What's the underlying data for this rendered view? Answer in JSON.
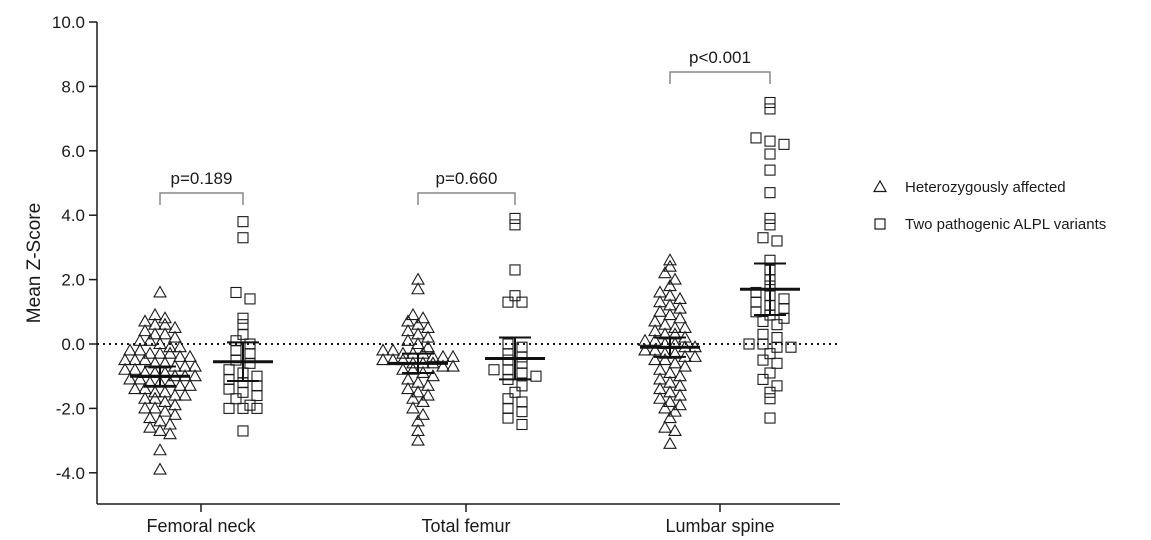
{
  "chart_data": {
    "type": "scatter",
    "ylabel": "Mean Z-Score",
    "xlabel": "",
    "ylim": [
      -5.0,
      10.0
    ],
    "yticks": [
      "10.0",
      "8.0",
      "6.0",
      "4.0",
      "2.0",
      "0.0",
      "-2.0",
      "-4.0"
    ],
    "ytick_values": [
      10,
      8,
      6,
      4,
      2,
      0,
      -2,
      -4
    ],
    "categories": [
      "Femoral neck",
      "Total femur",
      "Lumbar spine"
    ],
    "reference_line": 0,
    "legend_position": "right",
    "series": [
      {
        "name": "Heterozygously affected",
        "marker": "triangle",
        "groups": [
          {
            "category": "Femoral neck",
            "mean": -1.0,
            "ci_low": -1.3,
            "ci_high": -0.7,
            "values": [
              1.6,
              0.9,
              0.8,
              0.7,
              0.6,
              0.6,
              0.5,
              0.4,
              0.3,
              0.3,
              0.2,
              0.1,
              0.1,
              0.0,
              -0.1,
              -0.1,
              -0.2,
              -0.2,
              -0.3,
              -0.3,
              -0.3,
              -0.4,
              -0.4,
              -0.5,
              -0.5,
              -0.5,
              -0.6,
              -0.6,
              -0.7,
              -0.7,
              -0.7,
              -0.8,
              -0.8,
              -0.9,
              -0.9,
              -0.9,
              -1.0,
              -1.0,
              -1.0,
              -1.1,
              -1.1,
              -1.2,
              -1.2,
              -1.2,
              -1.3,
              -1.3,
              -1.4,
              -1.4,
              -1.5,
              -1.5,
              -1.6,
              -1.6,
              -1.7,
              -1.7,
              -1.8,
              -1.9,
              -2.0,
              -2.0,
              -2.1,
              -2.2,
              -2.3,
              -2.4,
              -2.5,
              -2.6,
              -2.7,
              -2.8,
              -3.3,
              -3.9
            ]
          },
          {
            "category": "Total femur",
            "mean": -0.6,
            "ci_low": -0.9,
            "ci_high": -0.3,
            "values": [
              2.0,
              1.7,
              0.9,
              0.8,
              0.7,
              0.6,
              0.5,
              0.4,
              0.3,
              0.2,
              0.1,
              0.0,
              -0.1,
              -0.2,
              -0.2,
              -0.3,
              -0.3,
              -0.3,
              -0.4,
              -0.4,
              -0.4,
              -0.5,
              -0.5,
              -0.5,
              -0.6,
              -0.6,
              -0.6,
              -0.7,
              -0.7,
              -0.8,
              -0.8,
              -0.9,
              -1.0,
              -1.1,
              -1.2,
              -1.3,
              -1.4,
              -1.5,
              -1.6,
              -1.7,
              -1.8,
              -2.0,
              -2.2,
              -2.4,
              -2.7,
              -3.0
            ]
          },
          {
            "category": "Lumbar spine",
            "mean": -0.1,
            "ci_low": -0.4,
            "ci_high": 0.2,
            "values": [
              2.6,
              2.4,
              2.2,
              2.0,
              1.8,
              1.6,
              1.5,
              1.4,
              1.3,
              1.2,
              1.1,
              1.0,
              0.9,
              0.8,
              0.7,
              0.6,
              0.5,
              0.5,
              0.4,
              0.3,
              0.3,
              0.2,
              0.1,
              0.1,
              0.0,
              0.0,
              -0.1,
              -0.1,
              -0.2,
              -0.2,
              -0.3,
              -0.3,
              -0.4,
              -0.4,
              -0.5,
              -0.5,
              -0.6,
              -0.7,
              -0.8,
              -0.9,
              -1.0,
              -1.1,
              -1.2,
              -1.3,
              -1.4,
              -1.5,
              -1.6,
              -1.7,
              -1.8,
              -1.9,
              -2.0,
              -2.1,
              -2.3,
              -2.6,
              -2.7,
              -3.1
            ]
          }
        ]
      },
      {
        "name": "Two pathogenic ALPL variants",
        "marker": "square",
        "groups": [
          {
            "category": "Femoral neck",
            "mean": -0.55,
            "ci_low": -1.15,
            "ci_high": 0.05,
            "values": [
              3.8,
              3.3,
              1.6,
              1.4,
              0.8,
              0.6,
              0.3,
              0.1,
              0.0,
              -0.2,
              -0.3,
              -0.5,
              -0.6,
              -0.8,
              -0.9,
              -1.0,
              -1.1,
              -1.2,
              -1.3,
              -1.4,
              -1.5,
              -1.6,
              -1.7,
              -1.9,
              -2.0,
              -2.0,
              -2.0,
              -2.7
            ]
          },
          {
            "category": "Total femur",
            "mean": -0.45,
            "ci_low": -1.1,
            "ci_high": 0.2,
            "values": [
              3.9,
              3.7,
              2.3,
              1.5,
              1.3,
              1.3,
              0.0,
              -0.1,
              -0.3,
              -0.4,
              -0.5,
              -0.6,
              -0.8,
              -0.8,
              -0.9,
              -1.0,
              -1.1,
              -1.3,
              -1.5,
              -1.7,
              -1.8,
              -2.0,
              -2.1,
              -2.3,
              -2.5
            ]
          },
          {
            "category": "Lumbar spine",
            "mean": 1.7,
            "ci_low": 0.9,
            "ci_high": 2.5,
            "values": [
              7.5,
              7.3,
              6.4,
              6.3,
              6.2,
              5.9,
              5.4,
              4.7,
              3.9,
              3.7,
              3.3,
              3.2,
              2.6,
              2.3,
              2.0,
              1.8,
              1.6,
              1.5,
              1.4,
              1.3,
              1.2,
              1.1,
              1.0,
              0.9,
              0.8,
              0.7,
              0.6,
              0.3,
              0.2,
              0.0,
              0.0,
              -0.1,
              -0.1,
              -0.3,
              -0.5,
              -0.6,
              -0.9,
              -1.1,
              -1.3,
              -1.5,
              -1.7,
              -2.3
            ]
          }
        ]
      }
    ],
    "comparisons": [
      {
        "category": "Femoral neck",
        "label": "p=0.189"
      },
      {
        "category": "Total femur",
        "label": "p=0.660"
      },
      {
        "category": "Lumbar spine",
        "label": "p<0.001"
      }
    ]
  }
}
